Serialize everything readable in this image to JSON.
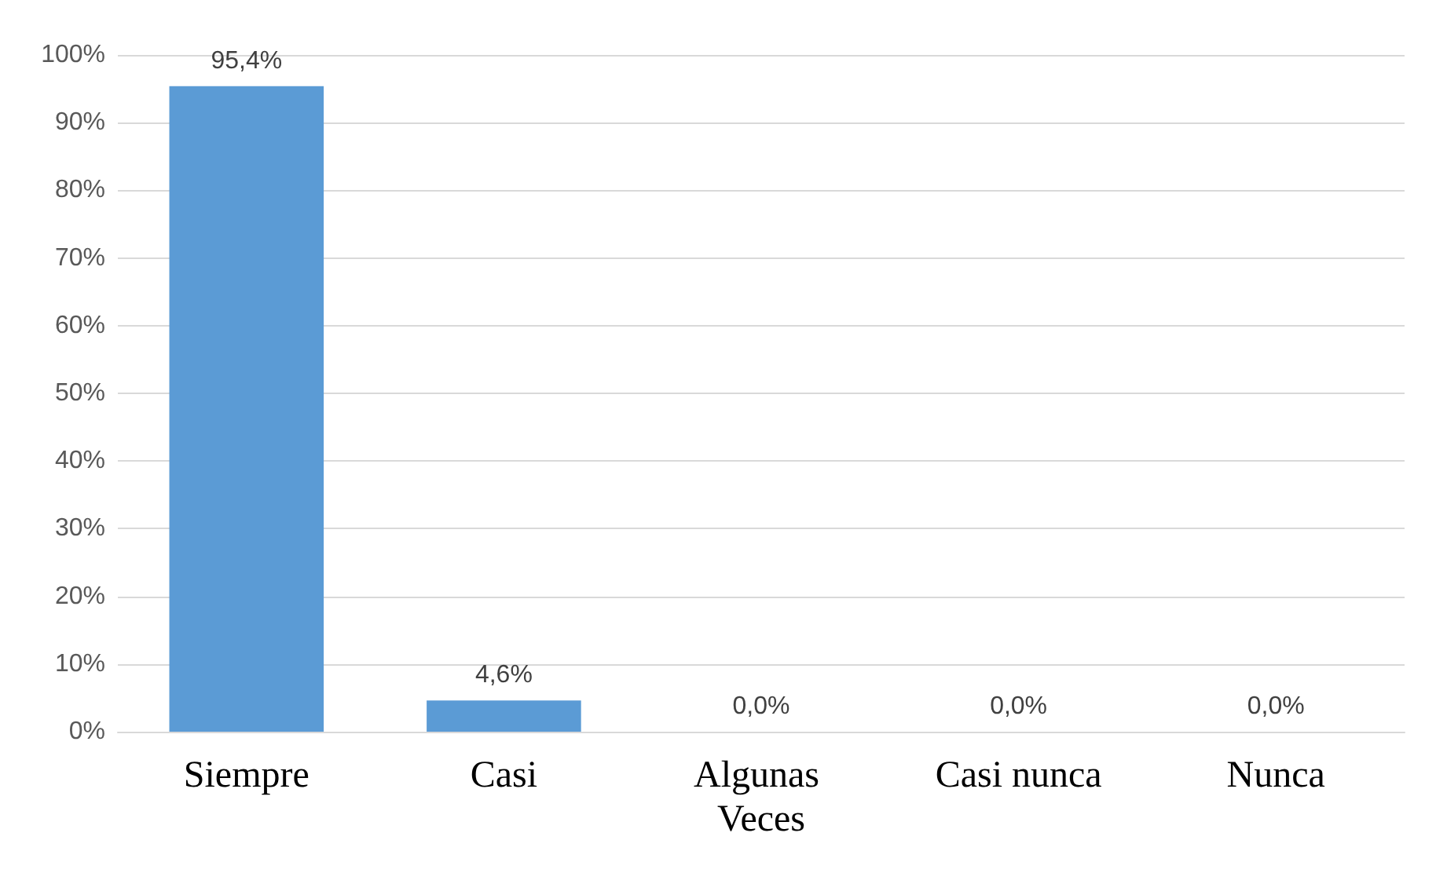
{
  "chart_data": {
    "type": "bar",
    "categories": [
      "Siempre",
      "Casi",
      "Algunas Veces",
      "Casi nunca",
      "Nunca"
    ],
    "values": [
      95.4,
      4.6,
      0,
      0,
      0
    ],
    "value_labels": [
      "95,4%",
      "4,6%",
      "0,0%",
      "0,0%",
      "0,0%"
    ],
    "color": "#5b9bd5",
    "ylim": [
      0,
      100
    ],
    "yticks": [
      {
        "value": 0,
        "label": "0%"
      },
      {
        "value": 10,
        "label": "10%"
      },
      {
        "value": 20,
        "label": "20%"
      },
      {
        "value": 30,
        "label": "30%"
      },
      {
        "value": 40,
        "label": "40%"
      },
      {
        "value": 50,
        "label": "50%"
      },
      {
        "value": 60,
        "label": "60%"
      },
      {
        "value": 70,
        "label": "70%"
      },
      {
        "value": 80,
        "label": "80%"
      },
      {
        "value": 90,
        "label": "90%"
      },
      {
        "value": 100,
        "label": "100%"
      }
    ],
    "grid": "y"
  }
}
